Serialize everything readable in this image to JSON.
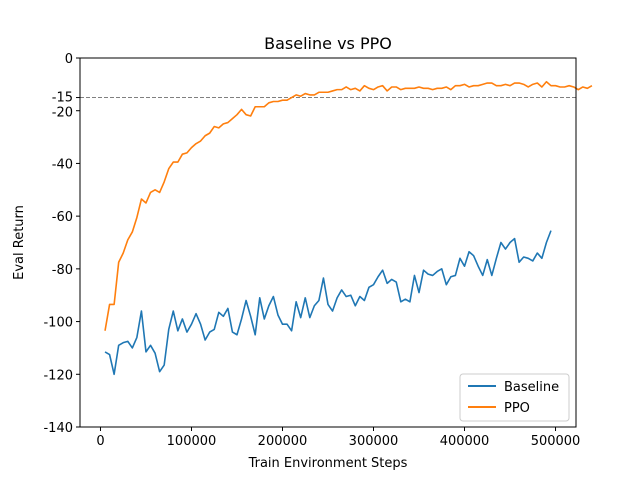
{
  "chart_data": {
    "type": "line",
    "title": "Baseline vs PPO",
    "xlabel": "Train Environment Steps",
    "ylabel": "Eval Return",
    "xlim": [
      -22500,
      522500
    ],
    "ylim": [
      -140,
      0
    ],
    "xticks": [
      0,
      100000,
      200000,
      300000,
      400000,
      500000
    ],
    "xtick_labels": [
      "0",
      "100000",
      "200000",
      "300000",
      "400000",
      "500000"
    ],
    "yticks": [
      0,
      -15,
      -20,
      -40,
      -60,
      -80,
      -100,
      -120,
      -140
    ],
    "ytick_labels": [
      "0",
      "-15",
      "-20",
      "-40",
      "-60",
      "-80",
      "-100",
      "-120",
      "-140"
    ],
    "grid": false,
    "legend_position": "bottom-right",
    "reference_line": {
      "y": -15,
      "style": "dashed",
      "color": "#808080"
    },
    "x_start": 5000,
    "x_step": 5000,
    "series": [
      {
        "name": "Baseline",
        "color": "#1f77b4",
        "values": [
          -111.5,
          -112.5,
          -120,
          -109,
          -108,
          -107.5,
          -110,
          -106,
          -96,
          -111.5,
          -109,
          -112,
          -119,
          -116.5,
          -103,
          -96,
          -103.5,
          -99,
          -104,
          -101,
          -97,
          -101,
          -107,
          -104,
          -103,
          -96.5,
          -98,
          -95,
          -104,
          -105,
          -99,
          -92,
          -98,
          -105,
          -91,
          -99,
          -94,
          -90.5,
          -97.5,
          -101,
          -101,
          -103.5,
          -92.5,
          -98.5,
          -91,
          -98.5,
          -94,
          -92,
          -83.5,
          -93.5,
          -96,
          -91,
          -88,
          -90.5,
          -90,
          -94,
          -90.5,
          -92,
          -87,
          -86,
          -83,
          -80.5,
          -85.5,
          -84,
          -85,
          -92.5,
          -91.5,
          -92.5,
          -82.5,
          -89,
          -80.5,
          -82,
          -82.5,
          -81,
          -80,
          -86,
          -83,
          -82.5,
          -76,
          -79,
          -73.5,
          -75,
          -79,
          -82.5,
          -76.5,
          -82.5,
          -76,
          -70,
          -72.5,
          -70,
          -68.5,
          -77.5,
          -75.5,
          -76,
          -77,
          -74,
          -76,
          -70,
          -65.5
        ]
      },
      {
        "name": "PPO",
        "color": "#ff7f0e",
        "values": [
          -103.5,
          -93.5,
          -93.5,
          -77.5,
          -74,
          -69,
          -66,
          -60.5,
          -53.5,
          -55,
          -51,
          -50,
          -51,
          -47,
          -42,
          -39.5,
          -39.5,
          -36.5,
          -36,
          -34,
          -32.5,
          -31.5,
          -29.5,
          -28.5,
          -26,
          -26.5,
          -25,
          -24.5,
          -23,
          -21.5,
          -19.5,
          -21.5,
          -22,
          -18.5,
          -18.5,
          -18.5,
          -17,
          -16.5,
          -16.5,
          -16,
          -16,
          -15,
          -14,
          -14.5,
          -13.5,
          -14,
          -14,
          -13,
          -13,
          -13,
          -12.5,
          -12,
          -12,
          -11,
          -12,
          -11.5,
          -12.5,
          -10.5,
          -11.5,
          -12,
          -11,
          -10.5,
          -12.5,
          -11,
          -11,
          -12,
          -11.5,
          -11.5,
          -11.5,
          -11,
          -11.5,
          -11.5,
          -12,
          -11.5,
          -11.5,
          -11,
          -12,
          -10.5,
          -10.5,
          -10,
          -11,
          -10.5,
          -10.5,
          -10,
          -9.5,
          -9.5,
          -10.5,
          -10.5,
          -10,
          -10.5,
          -9.5,
          -9.5,
          -10,
          -11,
          -10,
          -9.5,
          -11,
          -9,
          -10.5,
          -10.5,
          -11,
          -11,
          -10.5,
          -11,
          -12,
          -11,
          -11.5,
          -10.5
        ]
      }
    ]
  }
}
